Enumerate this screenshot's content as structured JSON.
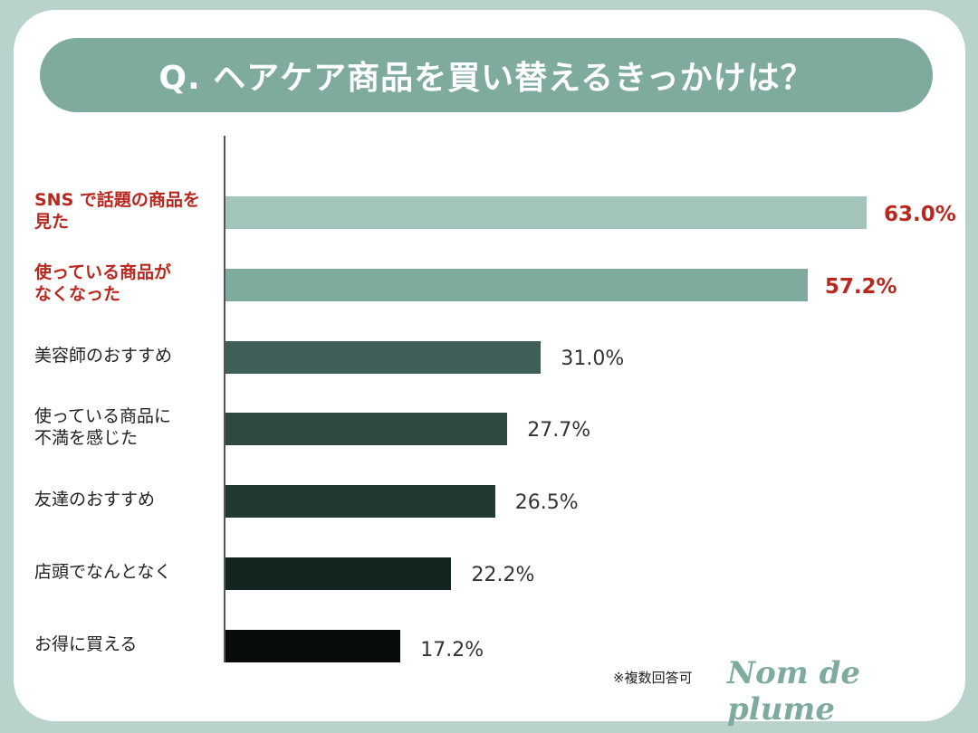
{
  "chart_data": {
    "type": "bar",
    "orientation": "horizontal",
    "title": "Q. ヘアケア商品を買い替えるきっかけは？",
    "categories": [
      "SNS で話題の商品を\n見た",
      "使っている商品が\nなくなった",
      "美容師のおすすめ",
      "使っている商品に\n不満を感じた",
      "友達のおすすめ",
      "店頭でなんとなく",
      "お得に買える"
    ],
    "values": [
      63.0,
      57.2,
      31.0,
      27.7,
      26.5,
      22.2,
      17.2
    ],
    "value_labels": [
      "63.0%",
      "57.2%",
      "31.0%",
      "27.7%",
      "26.5%",
      "22.2%",
      "17.2%"
    ],
    "highlighted": [
      true,
      true,
      false,
      false,
      false,
      false,
      false
    ],
    "bar_colors": [
      "#a2c4ba",
      "#7fab9f",
      "#3f5e57",
      "#2f4842",
      "#213932",
      "#132520",
      "#070b0a"
    ],
    "highlight_color": "#b8281e",
    "xlim": [
      0,
      63.0
    ],
    "xlabel": "",
    "ylabel": "",
    "grid": false,
    "note": "※複数回答可",
    "brand": "Nom de plume"
  }
}
